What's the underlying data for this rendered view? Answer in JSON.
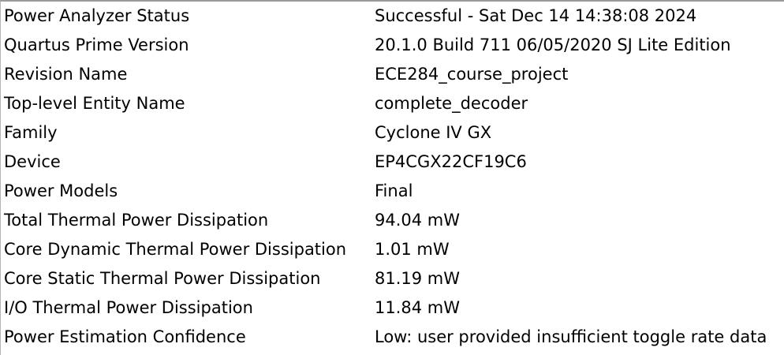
{
  "summary": {
    "rows": [
      {
        "label": "Power Analyzer Status",
        "value": "Successful - Sat Dec 14 14:38:08 2024"
      },
      {
        "label": "Quartus Prime Version",
        "value": "20.1.0 Build 711 06/05/2020 SJ Lite Edition"
      },
      {
        "label": "Revision Name",
        "value": "ECE284_course_project"
      },
      {
        "label": "Top-level Entity Name",
        "value": "complete_decoder"
      },
      {
        "label": "Family",
        "value": "Cyclone IV GX"
      },
      {
        "label": "Device",
        "value": "EP4CGX22CF19C6"
      },
      {
        "label": "Power Models",
        "value": "Final"
      },
      {
        "label": "Total Thermal Power Dissipation",
        "value": "94.04 mW"
      },
      {
        "label": "Core Dynamic Thermal Power Dissipation",
        "value": "1.01 mW"
      },
      {
        "label": "Core Static Thermal Power Dissipation",
        "value": "81.19 mW"
      },
      {
        "label": "I/O Thermal Power Dissipation",
        "value": "11.84 mW"
      },
      {
        "label": "Power Estimation Confidence",
        "value": "Low: user provided insufficient toggle rate data"
      }
    ]
  }
}
